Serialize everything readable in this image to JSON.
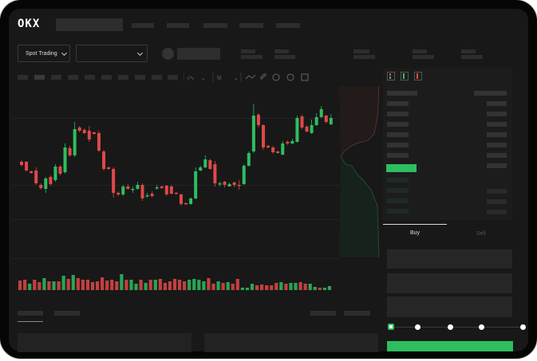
{
  "header": {
    "logo": "OKX",
    "nav_items": [
      "",
      "",
      "",
      "",
      ""
    ]
  },
  "market_bar": {
    "mode_dropdown": "Spot Trading",
    "pair_dropdown": ""
  },
  "chart_data": {
    "type": "candlestick",
    "colors": {
      "up": "#2ebd5f",
      "down": "#e04848"
    },
    "candles": [
      [
        97,
        93,
        99,
        91
      ],
      [
        97,
        86,
        98,
        85
      ],
      [
        85,
        83,
        86,
        82
      ],
      [
        86,
        70,
        90,
        68
      ],
      [
        68,
        64,
        70,
        62
      ],
      [
        63,
        76,
        78,
        58
      ],
      [
        78,
        69,
        80,
        67
      ],
      [
        74,
        91,
        94,
        72
      ],
      [
        91,
        82,
        93,
        80
      ],
      [
        84,
        115,
        120,
        82
      ],
      [
        114,
        105,
        117,
        103
      ],
      [
        105,
        138,
        147,
        103
      ],
      [
        140,
        136,
        142,
        134
      ],
      [
        137,
        133,
        139,
        132
      ],
      [
        136,
        125,
        142,
        122
      ],
      [
        134,
        132,
        135,
        131
      ],
      [
        133,
        111,
        136,
        109
      ],
      [
        110,
        88,
        112,
        86
      ],
      [
        90,
        88,
        91,
        87
      ],
      [
        88,
        58,
        90,
        52
      ],
      [
        58,
        56,
        60,
        54
      ],
      [
        56,
        66,
        68,
        54
      ],
      [
        66,
        63,
        69,
        62
      ],
      [
        63,
        63,
        66,
        58
      ],
      [
        63,
        68,
        72,
        62
      ],
      [
        68,
        51,
        70,
        48
      ],
      [
        54,
        55,
        58,
        52
      ],
      [
        57,
        54,
        60,
        52
      ],
      [
        64,
        65,
        68,
        62
      ],
      [
        66,
        64,
        67,
        63
      ],
      [
        67,
        56,
        68,
        54
      ],
      [
        66,
        57,
        68,
        56
      ],
      [
        58,
        57,
        59,
        56
      ],
      [
        56,
        44,
        57,
        42
      ],
      [
        45,
        44,
        46,
        43
      ],
      [
        44,
        51,
        52,
        43
      ],
      [
        51,
        85,
        90,
        50
      ],
      [
        86,
        90,
        92,
        85
      ],
      [
        90,
        100,
        105,
        89
      ],
      [
        99,
        88,
        101,
        87
      ],
      [
        94,
        70,
        98,
        66
      ],
      [
        69,
        70,
        72,
        66
      ],
      [
        72,
        68,
        73,
        65
      ],
      [
        66,
        69,
        71,
        66
      ],
      [
        71,
        68,
        72,
        65
      ],
      [
        68,
        67,
        74,
        62
      ],
      [
        69,
        92,
        94,
        68
      ],
      [
        92,
        108,
        110,
        91
      ],
      [
        110,
        155,
        170,
        108
      ],
      [
        156,
        143,
        158,
        140
      ],
      [
        143,
        115,
        144,
        112
      ],
      [
        117,
        115,
        118,
        114
      ],
      [
        115,
        109,
        117,
        107
      ],
      [
        110,
        108,
        111,
        107
      ],
      [
        106,
        120,
        123,
        105
      ],
      [
        122,
        120,
        124,
        118
      ],
      [
        120,
        123,
        126,
        119
      ],
      [
        122,
        152,
        155,
        121
      ],
      [
        154,
        140,
        156,
        138
      ],
      [
        141,
        135,
        143,
        134
      ],
      [
        133,
        143,
        150,
        132
      ],
      [
        143,
        153,
        158,
        142
      ],
      [
        153,
        163,
        167,
        152
      ],
      [
        155,
        147,
        156,
        145
      ],
      [
        144,
        152,
        157,
        143
      ]
    ],
    "volumes": [
      12,
      13,
      8,
      13,
      10,
      15,
      11,
      11,
      11,
      18,
      14,
      19,
      15,
      13,
      13,
      10,
      11,
      16,
      12,
      13,
      11,
      20,
      13,
      13,
      8,
      13,
      9,
      13,
      13,
      14,
      9,
      11,
      14,
      13,
      11,
      13,
      14,
      13,
      11,
      15,
      8,
      11,
      9,
      10,
      8,
      14,
      3,
      3,
      8,
      6,
      7,
      6,
      6,
      9,
      10,
      8,
      9,
      9,
      10,
      8,
      8,
      4,
      3,
      3,
      5
    ],
    "volume_up": [
      0,
      0,
      1,
      0,
      0,
      1,
      0,
      1,
      0,
      1,
      0,
      1,
      0,
      0,
      0,
      0,
      0,
      0,
      0,
      0,
      0,
      1,
      0,
      1,
      1,
      0,
      1,
      0,
      1,
      0,
      0,
      0,
      0,
      0,
      0,
      1,
      1,
      1,
      1,
      0,
      0,
      1,
      0,
      1,
      0,
      0,
      1,
      1,
      1,
      0,
      0,
      0,
      0,
      0,
      1,
      0,
      1,
      1,
      0,
      0,
      1,
      1,
      0,
      1,
      1
    ]
  },
  "orderbook": {
    "view_icons": [
      "both-sides-icon",
      "bids-only-icon",
      "asks-only-icon"
    ]
  },
  "trade_panel": {
    "tabs": [
      "Buy",
      "Sell"
    ],
    "active_tab": "Buy",
    "slider_percent": 0,
    "accent": "#2ebd5f"
  }
}
